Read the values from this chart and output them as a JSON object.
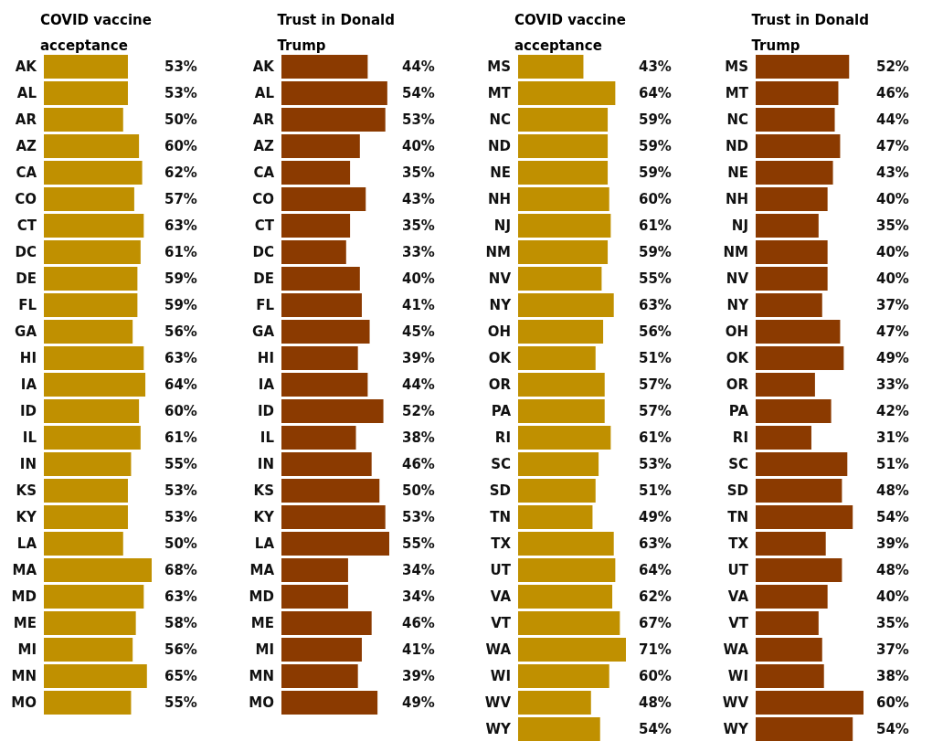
{
  "chart_data": [
    {
      "type": "bar",
      "orientation": "horizontal",
      "title": "COVID vaccine acceptance",
      "color": "#c09000",
      "categories": [
        "AK",
        "AL",
        "AR",
        "AZ",
        "CA",
        "CO",
        "CT",
        "DC",
        "DE",
        "FL",
        "GA",
        "HI",
        "IA",
        "ID",
        "IL",
        "IN",
        "KS",
        "KY",
        "LA",
        "MA",
        "MD",
        "ME",
        "MI",
        "MN",
        "MO"
      ],
      "values": [
        53,
        53,
        50,
        60,
        62,
        57,
        63,
        61,
        59,
        59,
        56,
        63,
        64,
        60,
        61,
        55,
        53,
        53,
        50,
        68,
        63,
        58,
        56,
        65,
        55
      ],
      "value_labels": [
        "53%",
        "53%",
        "50%",
        "60%",
        "62%",
        "57%",
        "63%",
        "61%",
        "59%",
        "59%",
        "56%",
        "63%",
        "64%",
        "60%",
        "61%",
        "55%",
        "53%",
        "53%",
        "50%",
        "68%",
        "63%",
        "58%",
        "56%",
        "65%",
        "55%"
      ]
    },
    {
      "type": "bar",
      "orientation": "horizontal",
      "title": "Trust in Donald Trump",
      "color": "#8b3a00",
      "categories": [
        "AK",
        "AL",
        "AR",
        "AZ",
        "CA",
        "CO",
        "CT",
        "DC",
        "DE",
        "FL",
        "GA",
        "HI",
        "IA",
        "ID",
        "IL",
        "IN",
        "KS",
        "KY",
        "LA",
        "MA",
        "MD",
        "ME",
        "MI",
        "MN",
        "MO"
      ],
      "values": [
        44,
        54,
        53,
        40,
        35,
        43,
        35,
        33,
        40,
        41,
        45,
        39,
        44,
        52,
        38,
        46,
        50,
        53,
        55,
        34,
        34,
        46,
        41,
        39,
        49
      ],
      "value_labels": [
        "44%",
        "54%",
        "53%",
        "40%",
        "35%",
        "43%",
        "35%",
        "33%",
        "40%",
        "41%",
        "45%",
        "39%",
        "44%",
        "52%",
        "38%",
        "46%",
        "50%",
        "53%",
        "55%",
        "34%",
        "34%",
        "46%",
        "41%",
        "39%",
        "49%"
      ]
    },
    {
      "type": "bar",
      "orientation": "horizontal",
      "title": "COVID vaccine acceptance",
      "color": "#c09000",
      "categories": [
        "MS",
        "MT",
        "NC",
        "ND",
        "NE",
        "NH",
        "NJ",
        "NM",
        "NV",
        "NY",
        "OH",
        "OK",
        "OR",
        "PA",
        "RI",
        "SC",
        "SD",
        "TN",
        "TX",
        "UT",
        "VA",
        "VT",
        "WA",
        "WI",
        "WV",
        "WY"
      ],
      "values": [
        43,
        64,
        59,
        59,
        59,
        60,
        61,
        59,
        55,
        63,
        56,
        51,
        57,
        57,
        61,
        53,
        51,
        49,
        63,
        64,
        62,
        67,
        71,
        60,
        48,
        54
      ],
      "value_labels": [
        "43%",
        "64%",
        "59%",
        "59%",
        "59%",
        "60%",
        "61%",
        "59%",
        "55%",
        "63%",
        "56%",
        "51%",
        "57%",
        "57%",
        "61%",
        "53%",
        "51%",
        "49%",
        "63%",
        "64%",
        "62%",
        "67%",
        "71%",
        "60%",
        "48%",
        "54%"
      ]
    },
    {
      "type": "bar",
      "orientation": "horizontal",
      "title": "Trust in Donald Trump",
      "color": "#8b3a00",
      "categories": [
        "MS",
        "MT",
        "NC",
        "ND",
        "NE",
        "NH",
        "NJ",
        "NM",
        "NV",
        "NY",
        "OH",
        "OK",
        "OR",
        "PA",
        "RI",
        "SC",
        "SD",
        "TN",
        "TX",
        "UT",
        "VA",
        "VT",
        "WA",
        "WI",
        "WV",
        "WY"
      ],
      "values": [
        52,
        46,
        44,
        47,
        43,
        40,
        35,
        40,
        40,
        37,
        47,
        49,
        33,
        42,
        31,
        51,
        48,
        54,
        39,
        48,
        40,
        35,
        37,
        38,
        60,
        54
      ],
      "value_labels": [
        "52%",
        "46%",
        "44%",
        "47%",
        "43%",
        "40%",
        "35%",
        "40%",
        "40%",
        "37%",
        "47%",
        "49%",
        "33%",
        "42%",
        "31%",
        "51%",
        "48%",
        "54%",
        "39%",
        "48%",
        "40%",
        "35%",
        "37%",
        "38%",
        "60%",
        "54%"
      ]
    }
  ]
}
